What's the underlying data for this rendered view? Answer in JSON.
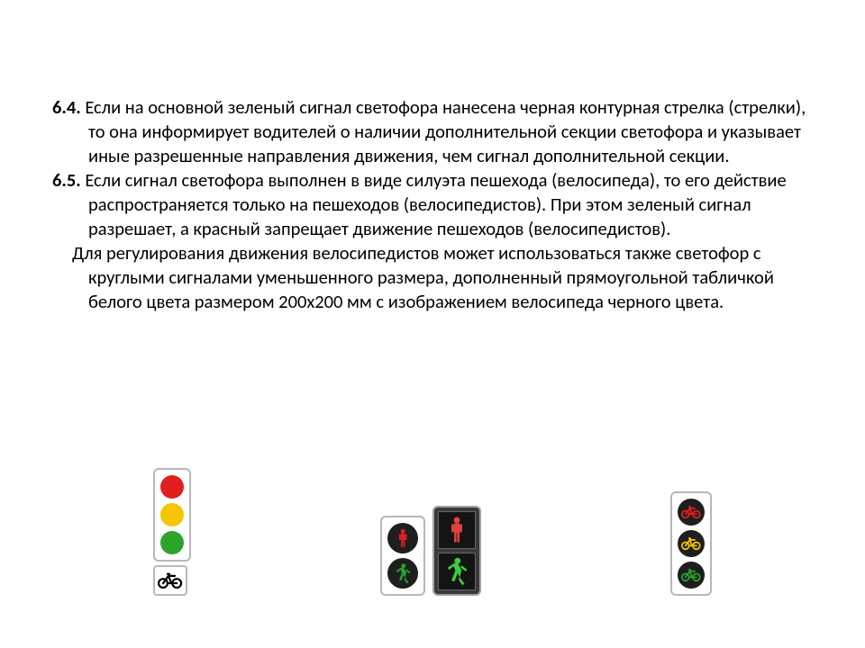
{
  "text": {
    "p1_num": "6.4. ",
    "p1_body": "Если на основной зеленый сигнал светофора нанесена черная контурная стрелка (стрелки), то она информирует водителей о наличии дополнительной секции светофора и указывает иные разрешенные направления движения, чем сигнал дополнительной секции.",
    "p2_num": "6.5. ",
    "p2_body": "Если сигнал светофора выполнен в виде силуэта пешехода (велосипеда), то его действие распространяется только на пешеходов (велосипедистов). При этом зеленый сигнал разрешает, а красный запрещает движение пешеходов (велосипедистов).",
    "p3": "Для регулирования движения велосипедистов может использоваться также светофор с круглыми сигналами уменьшенного размера, дополненный прямоугольной табличкой белого цвета размером 200х200 мм с изображением велосипеда черного цвета."
  },
  "colors": {
    "red": "#e21f1f",
    "yellow": "#f4c600",
    "green": "#2aa52a",
    "green_walk": "#3ccf3c",
    "dark_lens": "#1e1e1e",
    "black": "#000000",
    "body_light": "#ffffff",
    "body_dark": "#3a3a3a",
    "border": "#b8b8b8"
  },
  "signals": {
    "group1": {
      "housing": "light",
      "lens_d": 26,
      "lenses": [
        {
          "fill": "#e21f1f",
          "icon": null
        },
        {
          "fill": "#f4c600",
          "icon": null
        },
        {
          "fill": "#2aa52a",
          "icon": null
        }
      ],
      "plate": {
        "w": 34,
        "h": 30,
        "icon": "bicycle",
        "icon_color": "#000000"
      }
    },
    "group2a": {
      "housing": "light",
      "lens_d": 34,
      "lenses": [
        {
          "fill": "#1e1e1e",
          "icon": "ped-stand",
          "icon_color": "#e21f1f"
        },
        {
          "fill": "#1e1e1e",
          "icon": "ped-walk",
          "icon_color": "#2aa52a"
        }
      ]
    },
    "group2b": {
      "housing": "dark",
      "cell": 40,
      "cells": [
        {
          "icon": "ped-stand",
          "icon_color": "#e84040"
        },
        {
          "icon": "ped-walk",
          "icon_color": "#3ccf3c"
        }
      ]
    },
    "group3": {
      "housing": "light",
      "lens_d": 30,
      "lenses": [
        {
          "fill": "#1e1e1e",
          "icon": "bicycle",
          "icon_color": "#e21f1f"
        },
        {
          "fill": "#1e1e1e",
          "icon": "bicycle",
          "icon_color": "#f4c600"
        },
        {
          "fill": "#1e1e1e",
          "icon": "bicycle",
          "icon_color": "#2aa52a"
        }
      ]
    }
  }
}
